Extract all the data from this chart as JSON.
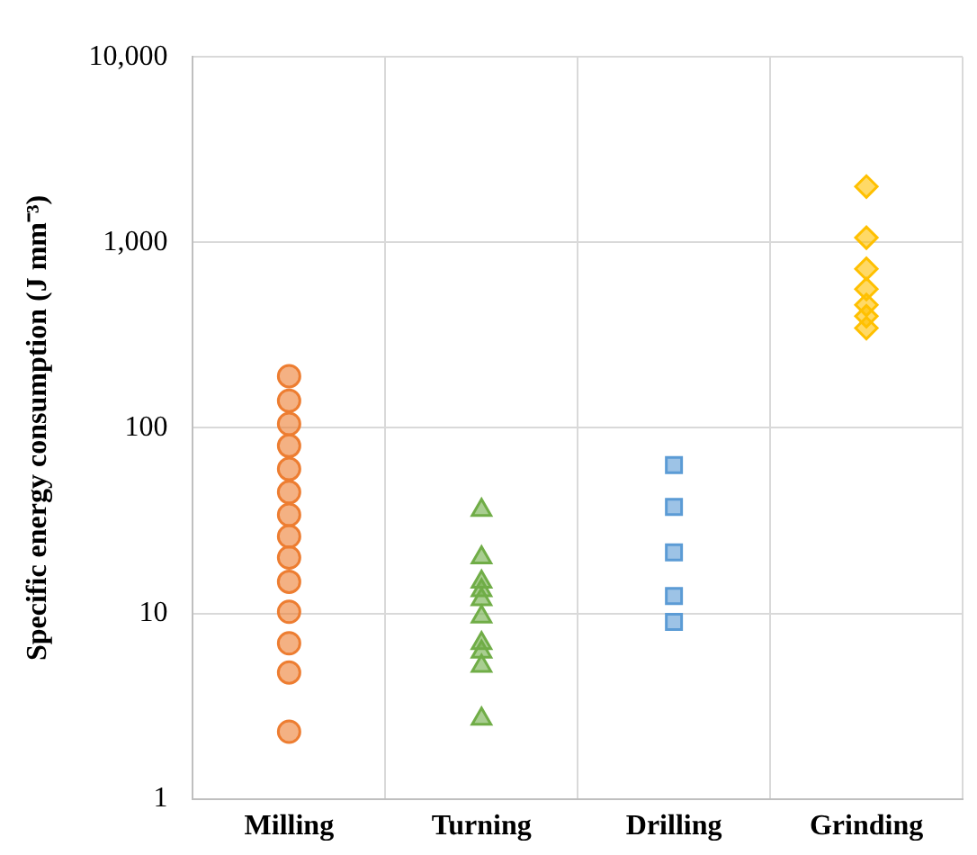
{
  "chart_data": {
    "type": "scatter",
    "ylabel": "Specific energy consumption (J mm⁻³)",
    "categories": [
      "Milling",
      "Turning",
      "Drilling",
      "Grinding"
    ],
    "log": "y",
    "grid": true,
    "legend": false,
    "ylim": [
      1,
      10000
    ],
    "yticks": [
      1,
      10,
      100,
      {
        "value": 1000,
        "label": "1,000"
      },
      {
        "value": 10000,
        "label": "10,000"
      }
    ],
    "series": [
      {
        "color": "#ed7d31",
        "marker": "circle",
        "x": [
          "Milling",
          "Milling",
          "Milling",
          "Milling",
          "Milling",
          "Milling",
          "Milling",
          "Milling",
          "Milling",
          "Milling",
          "Milling",
          "Milling",
          "Milling",
          "Milling"
        ],
        "values": [
          190,
          140,
          105,
          80,
          60,
          45,
          34,
          26,
          20,
          14.8,
          10.2,
          6.9,
          4.8,
          2.3
        ]
      },
      {
        "color": "#70ad47",
        "marker": "triangle",
        "x": [
          "Turning",
          "Turning",
          "Turning",
          "Turning",
          "Turning",
          "Turning",
          "Turning",
          "Turning",
          "Turning",
          "Turning"
        ],
        "values": [
          36,
          20,
          14.8,
          13.3,
          11.9,
          9.6,
          6.9,
          6.2,
          5.2,
          2.7
        ]
      },
      {
        "color": "#5b9bd5",
        "marker": "square",
        "x": [
          "Drilling",
          "Drilling",
          "Drilling",
          "Drilling",
          "Drilling"
        ],
        "values": [
          63,
          37.5,
          21.3,
          12.4,
          9
        ]
      },
      {
        "color": "#ffc000",
        "marker": "diamond",
        "x": [
          "Grinding",
          "Grinding",
          "Grinding",
          "Grinding",
          "Grinding",
          "Grinding",
          "Grinding"
        ],
        "values": [
          2000,
          1060,
          720,
          560,
          460,
          400,
          345
        ]
      }
    ]
  }
}
